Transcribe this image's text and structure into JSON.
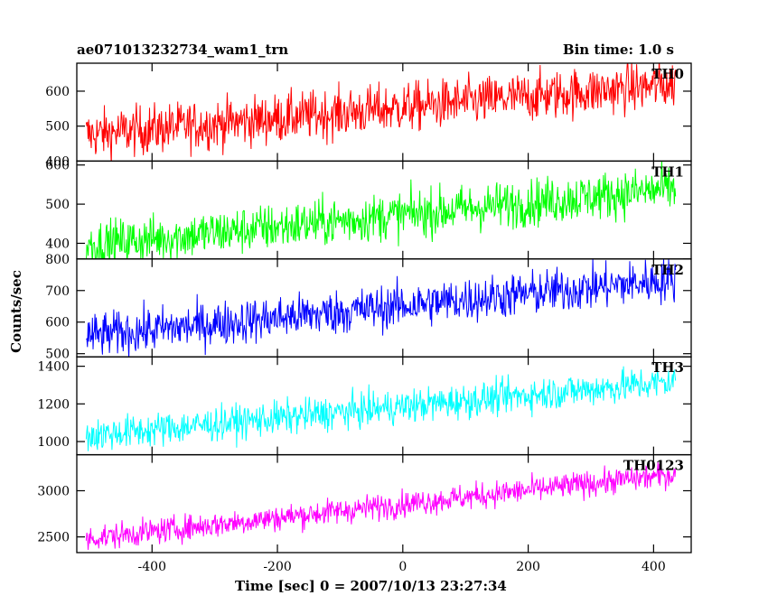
{
  "header": {
    "title": "ae071013232734_wam1_trn",
    "bin_time": "Bin time: 1.0 s"
  },
  "chart_data": {
    "type": "line",
    "xlabel": "Time [sec] 0 = 2007/10/13 23:27:34",
    "ylabel": "Counts/sec",
    "xlim": [
      -520,
      460
    ],
    "xticks": [
      -400,
      -200,
      0,
      200,
      400
    ],
    "x_range": [
      -505,
      435
    ],
    "grid": false,
    "panels": [
      {
        "name": "TH0",
        "color": "#ff0000",
        "ylim": [
          400,
          680
        ],
        "yticks": [
          400,
          500,
          600
        ],
        "trend_start": 475,
        "trend_end": 620,
        "noise": 35
      },
      {
        "name": "TH1",
        "color": "#00ff00",
        "ylim": [
          360,
          610
        ],
        "yticks": [
          400,
          500,
          600
        ],
        "trend_start": 395,
        "trend_end": 540,
        "noise": 30
      },
      {
        "name": "TH2",
        "color": "#0000ff",
        "ylim": [
          490,
          800
        ],
        "yticks": [
          500,
          600,
          700,
          800
        ],
        "trend_start": 555,
        "trend_end": 735,
        "noise": 35
      },
      {
        "name": "TH3",
        "color": "#00ffff",
        "ylim": [
          930,
          1450
        ],
        "yticks": [
          1000,
          1200,
          1400
        ],
        "trend_start": 1030,
        "trend_end": 1320,
        "noise": 45
      },
      {
        "name": "TH0123",
        "color": "#ff00ff",
        "ylim": [
          2330,
          3390
        ],
        "yticks": [
          2500,
          3000
        ],
        "trend_start": 2480,
        "trend_end": 3180,
        "noise": 70
      }
    ]
  }
}
